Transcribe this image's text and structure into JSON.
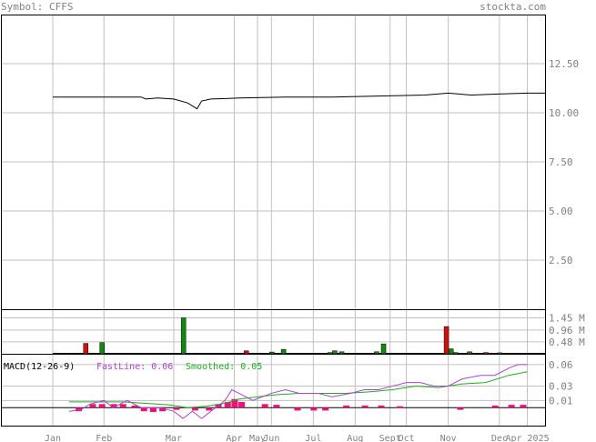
{
  "header": {
    "symbol_label": "Symbol: CFFS",
    "site": "stockta.com"
  },
  "macd_legend": {
    "name": "MACD(12-26-9)",
    "fast": "FastLine: 0.06",
    "smoothed": "Smoothed: 0.05"
  },
  "colors": {
    "up": "#118811",
    "down": "#cc1111",
    "fast_line": "#aa44cc",
    "smoothed_line": "#22aa22",
    "histogram": "#ee1177",
    "grid": "#c0c0c0",
    "axis_text": "#808080"
  },
  "chart_data": {
    "type": "line",
    "x_tick_labels": [
      "Jan",
      "Feb",
      "Mar",
      "Apr",
      "May",
      "Jun",
      "Jul",
      "Aug",
      "Sept",
      "Oct",
      "Nov",
      "Dec",
      "Apr 2025"
    ],
    "x_ticks": [
      0,
      1.1,
      2.6,
      3.9,
      4.4,
      4.7,
      5.6,
      6.5,
      7.25,
      7.6,
      8.5,
      9.6,
      10.2
    ],
    "price_panel": {
      "y_ticks": [
        12.5,
        10.0,
        7.5,
        5.0,
        2.5
      ],
      "y_tick_labels": [
        "12.50",
        "10.00",
        "7.50",
        "5.00",
        "2.50"
      ],
      "ylim": [
        0,
        15
      ],
      "close": [
        [
          0,
          10.8
        ],
        [
          1.9,
          10.8
        ],
        [
          2.0,
          10.7
        ],
        [
          2.25,
          10.75
        ],
        [
          2.6,
          10.7
        ],
        [
          2.9,
          10.5
        ],
        [
          3.1,
          10.2
        ],
        [
          3.2,
          10.6
        ],
        [
          3.4,
          10.7
        ],
        [
          4.0,
          10.75
        ],
        [
          5.0,
          10.8
        ],
        [
          6.0,
          10.8
        ],
        [
          7.0,
          10.85
        ],
        [
          8.0,
          10.9
        ],
        [
          8.5,
          11.0
        ],
        [
          9.0,
          10.9
        ],
        [
          9.5,
          10.95
        ],
        [
          10.2,
          11.0
        ],
        [
          10.6,
          11.0
        ]
      ]
    },
    "volume_panel": {
      "y_ticks": [
        1.45,
        0.96,
        0.48
      ],
      "y_tick_labels": [
        "1.45 M",
        "0.96 M",
        "0.48 M"
      ],
      "ylim": [
        0,
        1.8
      ],
      "bars": [
        {
          "x": 0.7,
          "v": 0.42,
          "dir": "down"
        },
        {
          "x": 1.05,
          "v": 0.45,
          "dir": "up"
        },
        {
          "x": 2.8,
          "v": 1.45,
          "dir": "up"
        },
        {
          "x": 4.15,
          "v": 0.12,
          "dir": "down"
        },
        {
          "x": 4.7,
          "v": 0.07,
          "dir": "up"
        },
        {
          "x": 4.95,
          "v": 0.18,
          "dir": "up"
        },
        {
          "x": 5.95,
          "v": 0.05,
          "dir": "up"
        },
        {
          "x": 6.05,
          "v": 0.12,
          "dir": "up"
        },
        {
          "x": 6.2,
          "v": 0.08,
          "dir": "up"
        },
        {
          "x": 6.95,
          "v": 0.08,
          "dir": "up"
        },
        {
          "x": 7.1,
          "v": 0.4,
          "dir": "up"
        },
        {
          "x": 8.45,
          "v": 1.1,
          "dir": "down"
        },
        {
          "x": 8.55,
          "v": 0.2,
          "dir": "up"
        },
        {
          "x": 8.65,
          "v": 0.05,
          "dir": "up"
        },
        {
          "x": 8.95,
          "v": 0.08,
          "dir": "up"
        },
        {
          "x": 9.3,
          "v": 0.05,
          "dir": "down"
        },
        {
          "x": 9.6,
          "v": 0.04,
          "dir": "up"
        }
      ]
    },
    "macd_panel": {
      "y_ticks": [
        0.06,
        0.03,
        0.01
      ],
      "y_tick_labels": [
        "0.06",
        "0.03",
        "0.01"
      ],
      "ylim": [
        -0.025,
        0.075
      ],
      "fast": [
        [
          0.35,
          -0.005
        ],
        [
          0.6,
          -0.003
        ],
        [
          0.8,
          0.005
        ],
        [
          1.1,
          0.01
        ],
        [
          1.3,
          0.0
        ],
        [
          1.6,
          0.01
        ],
        [
          1.9,
          0.0
        ],
        [
          2.3,
          0.0
        ],
        [
          2.6,
          -0.005
        ],
        [
          2.8,
          -0.015
        ],
        [
          3.0,
          -0.005
        ],
        [
          3.2,
          -0.015
        ],
        [
          3.5,
          0.0
        ],
        [
          3.7,
          0.01
        ],
        [
          3.85,
          0.025
        ],
        [
          4.0,
          0.02
        ],
        [
          4.3,
          0.01
        ],
        [
          4.7,
          0.02
        ],
        [
          5.0,
          0.025
        ],
        [
          5.3,
          0.02
        ],
        [
          5.7,
          0.02
        ],
        [
          6.0,
          0.015
        ],
        [
          6.4,
          0.02
        ],
        [
          6.7,
          0.025
        ],
        [
          7.0,
          0.025
        ],
        [
          7.3,
          0.03
        ],
        [
          7.6,
          0.035
        ],
        [
          7.9,
          0.035
        ],
        [
          8.2,
          0.03
        ],
        [
          8.5,
          0.03
        ],
        [
          8.8,
          0.04
        ],
        [
          9.2,
          0.045
        ],
        [
          9.5,
          0.045
        ],
        [
          9.8,
          0.055
        ],
        [
          10.0,
          0.06
        ],
        [
          10.2,
          0.06
        ]
      ],
      "smoothed": [
        [
          0.35,
          0.008
        ],
        [
          1.0,
          0.008
        ],
        [
          1.5,
          0.008
        ],
        [
          2.0,
          0.006
        ],
        [
          2.5,
          0.004
        ],
        [
          2.9,
          0.0
        ],
        [
          3.3,
          0.002
        ],
        [
          3.7,
          0.006
        ],
        [
          4.0,
          0.012
        ],
        [
          4.4,
          0.015
        ],
        [
          4.8,
          0.018
        ],
        [
          5.3,
          0.02
        ],
        [
          5.8,
          0.02
        ],
        [
          6.3,
          0.02
        ],
        [
          6.8,
          0.022
        ],
        [
          7.3,
          0.025
        ],
        [
          7.8,
          0.03
        ],
        [
          8.3,
          0.028
        ],
        [
          8.8,
          0.033
        ],
        [
          9.3,
          0.035
        ],
        [
          9.8,
          0.045
        ],
        [
          10.2,
          0.05
        ]
      ],
      "histogram": [
        [
          0.55,
          -0.005
        ],
        [
          0.85,
          0.005
        ],
        [
          1.05,
          0.005
        ],
        [
          1.3,
          0.005
        ],
        [
          1.5,
          0.005
        ],
        [
          1.75,
          0.003
        ],
        [
          1.95,
          -0.005
        ],
        [
          2.15,
          -0.006
        ],
        [
          2.35,
          -0.005
        ],
        [
          2.65,
          -0.003
        ],
        [
          3.05,
          -0.004
        ],
        [
          3.35,
          -0.004
        ],
        [
          3.55,
          0.005
        ],
        [
          3.75,
          0.008
        ],
        [
          3.9,
          0.012
        ],
        [
          4.05,
          0.008
        ],
        [
          4.55,
          0.005
        ],
        [
          4.8,
          0.004
        ],
        [
          5.25,
          -0.004
        ],
        [
          5.6,
          -0.004
        ],
        [
          5.85,
          -0.004
        ],
        [
          6.3,
          0.003
        ],
        [
          6.7,
          0.003
        ],
        [
          7.05,
          0.003
        ],
        [
          7.45,
          0.002
        ],
        [
          8.75,
          -0.003
        ],
        [
          9.5,
          0.003
        ],
        [
          9.85,
          0.004
        ],
        [
          10.1,
          0.004
        ]
      ]
    }
  }
}
